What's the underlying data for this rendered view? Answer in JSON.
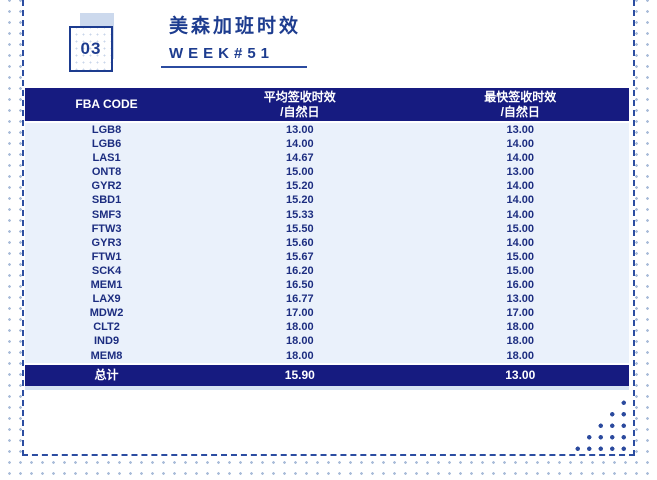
{
  "header": {
    "badge_number": "03",
    "title": "美森加班时效",
    "week": "WEEK#51"
  },
  "table": {
    "columns": [
      {
        "title": "FBA CODE",
        "subtitle": ""
      },
      {
        "title": "平均签收时效",
        "subtitle": "/自然日"
      },
      {
        "title": "最快签收时效",
        "subtitle": "/自然日"
      }
    ],
    "rows": [
      [
        "LGB8",
        "13.00",
        "13.00"
      ],
      [
        "LGB6",
        "14.00",
        "14.00"
      ],
      [
        "LAS1",
        "14.67",
        "14.00"
      ],
      [
        "ONT8",
        "15.00",
        "13.00"
      ],
      [
        "GYR2",
        "15.20",
        "14.00"
      ],
      [
        "SBD1",
        "15.20",
        "14.00"
      ],
      [
        "SMF3",
        "15.33",
        "14.00"
      ],
      [
        "FTW3",
        "15.50",
        "15.00"
      ],
      [
        "GYR3",
        "15.60",
        "14.00"
      ],
      [
        "FTW1",
        "15.67",
        "15.00"
      ],
      [
        "SCK4",
        "16.20",
        "15.00"
      ],
      [
        "MEM1",
        "16.50",
        "16.00"
      ],
      [
        "LAX9",
        "16.77",
        "13.00"
      ],
      [
        "MDW2",
        "17.00",
        "17.00"
      ],
      [
        "CLT2",
        "18.00",
        "18.00"
      ],
      [
        "IND9",
        "18.00",
        "18.00"
      ],
      [
        "MEM8",
        "18.00",
        "18.00"
      ]
    ],
    "total_row": [
      "总计",
      "15.90",
      "13.00"
    ]
  },
  "colors": {
    "navy": "#161b80",
    "title_blue": "#1d3c8f",
    "row_bg": "#eaf1fb",
    "row_text": "#1c2d80",
    "dashed_border": "#2c4da1",
    "light_dots": "#aabdd9",
    "dark_dots": "#2b4a9e",
    "decor_square": "#ccd9ed"
  }
}
